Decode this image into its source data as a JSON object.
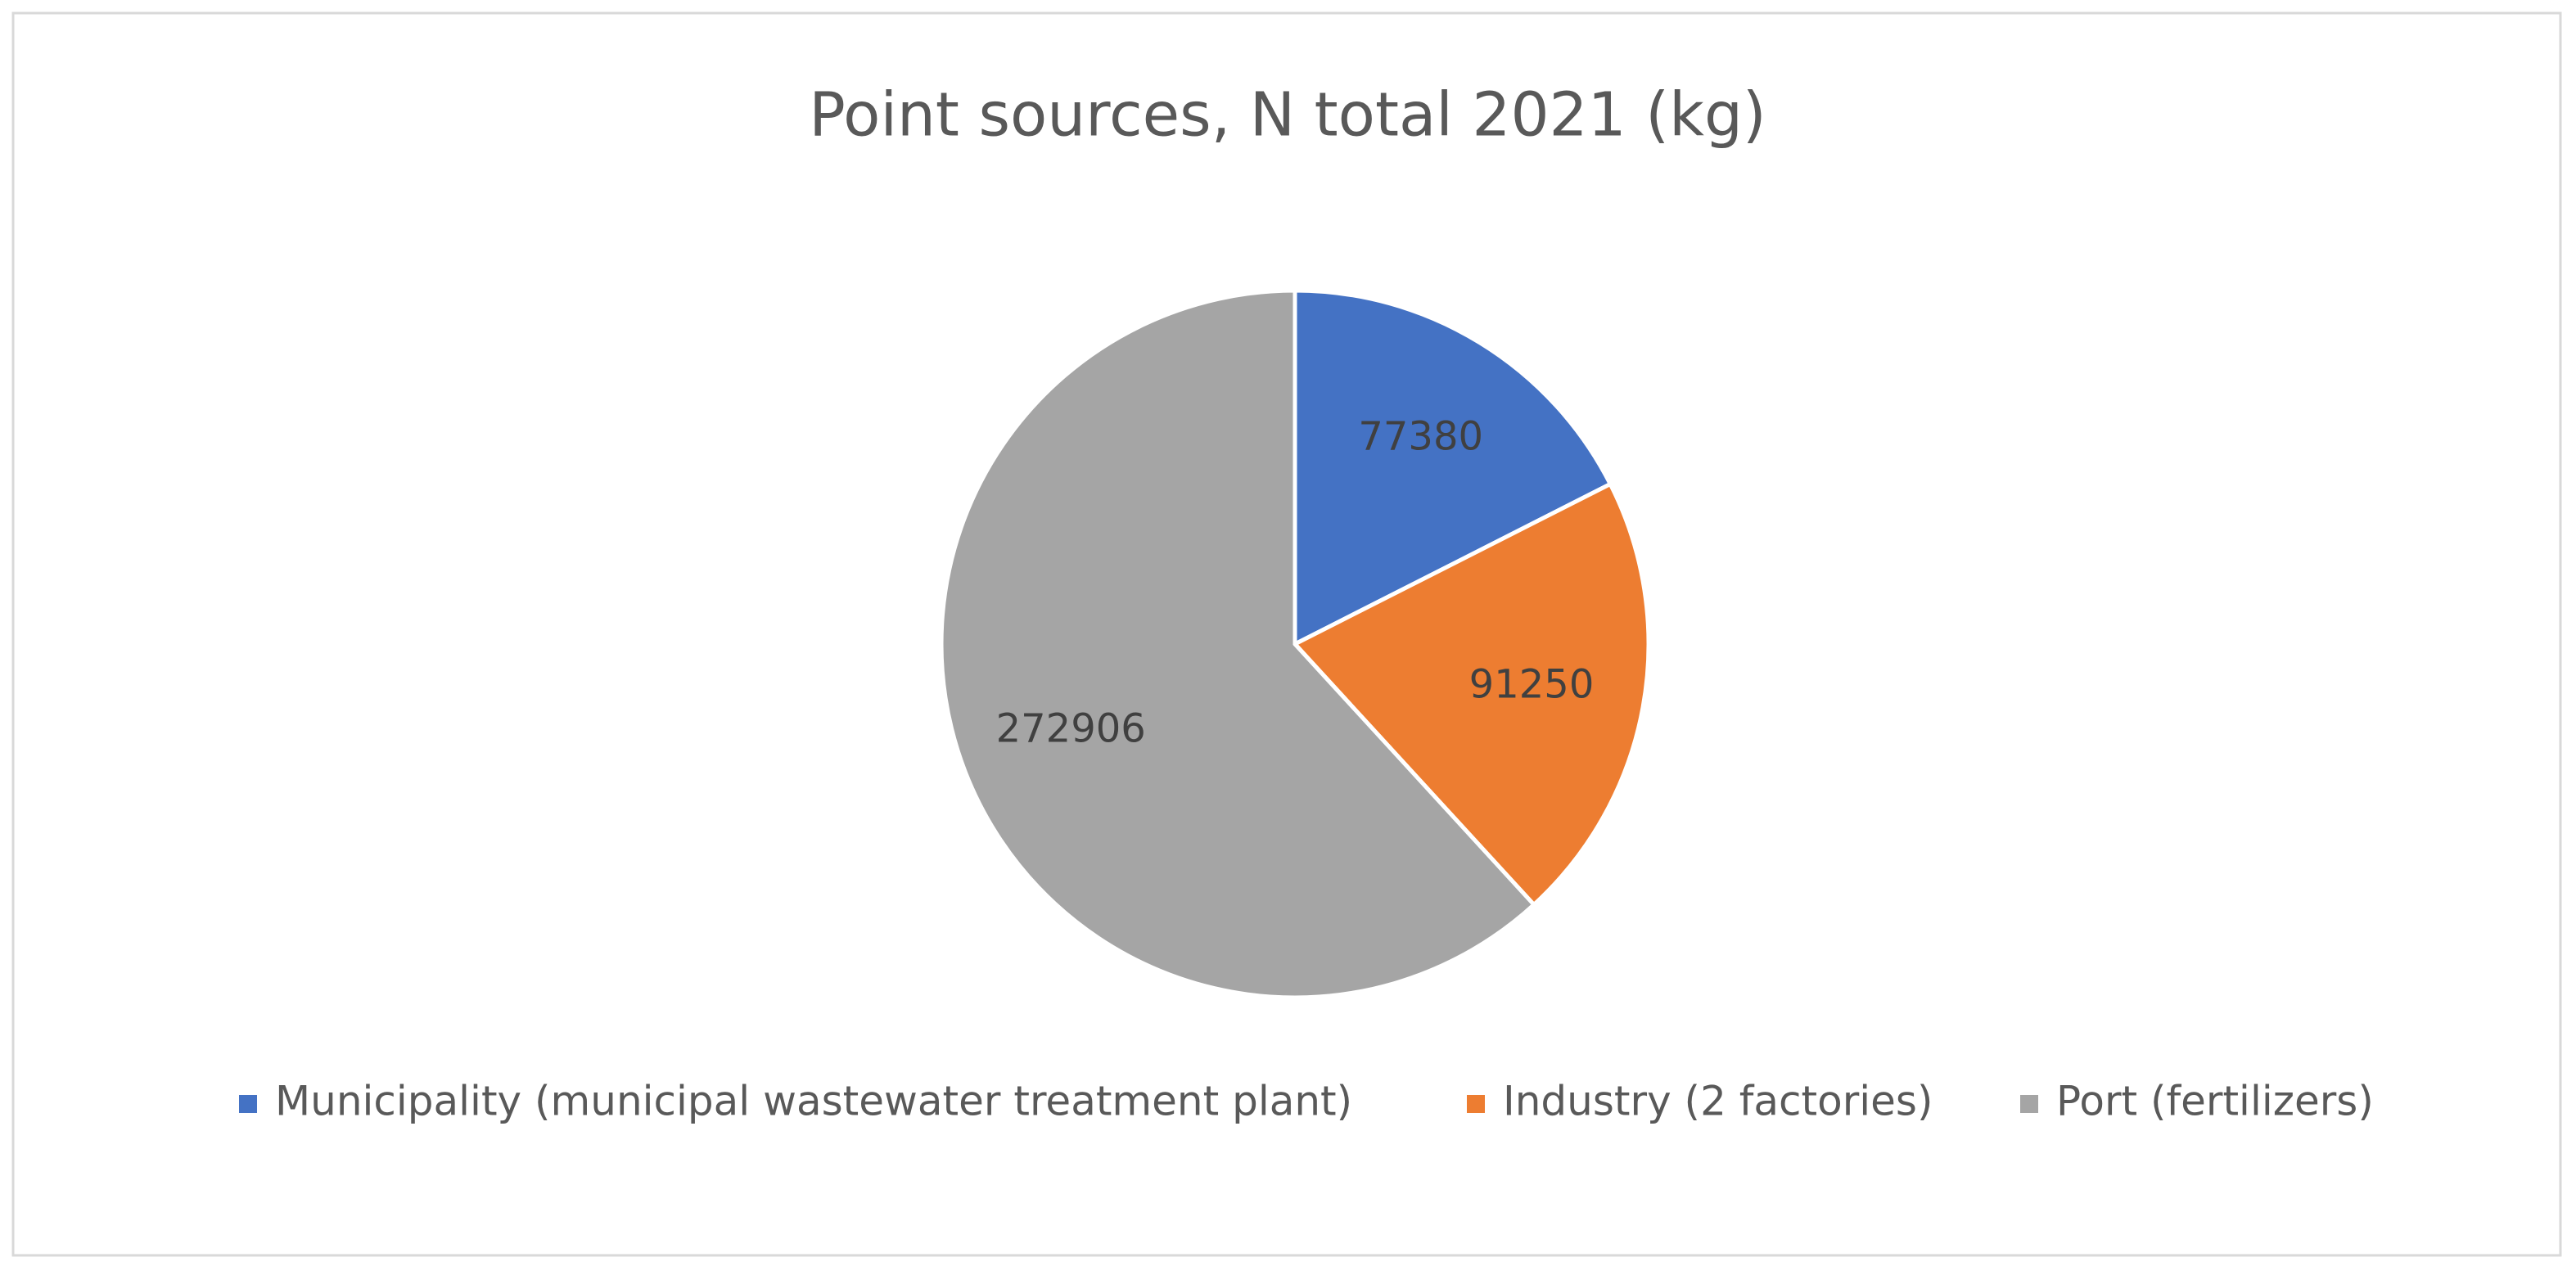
{
  "chart_data": {
    "type": "pie",
    "title": "Point sources, N total 2021 (kg)",
    "categories": [
      "Municipality (municipal wastewater treatment plant)",
      "Industry (2 factories)",
      "Port (fertilizers)"
    ],
    "values": [
      77380,
      91250,
      272906
    ],
    "colors": [
      "#4472c4",
      "#ed7d31",
      "#a5a5a5"
    ],
    "legend": "bottom"
  }
}
